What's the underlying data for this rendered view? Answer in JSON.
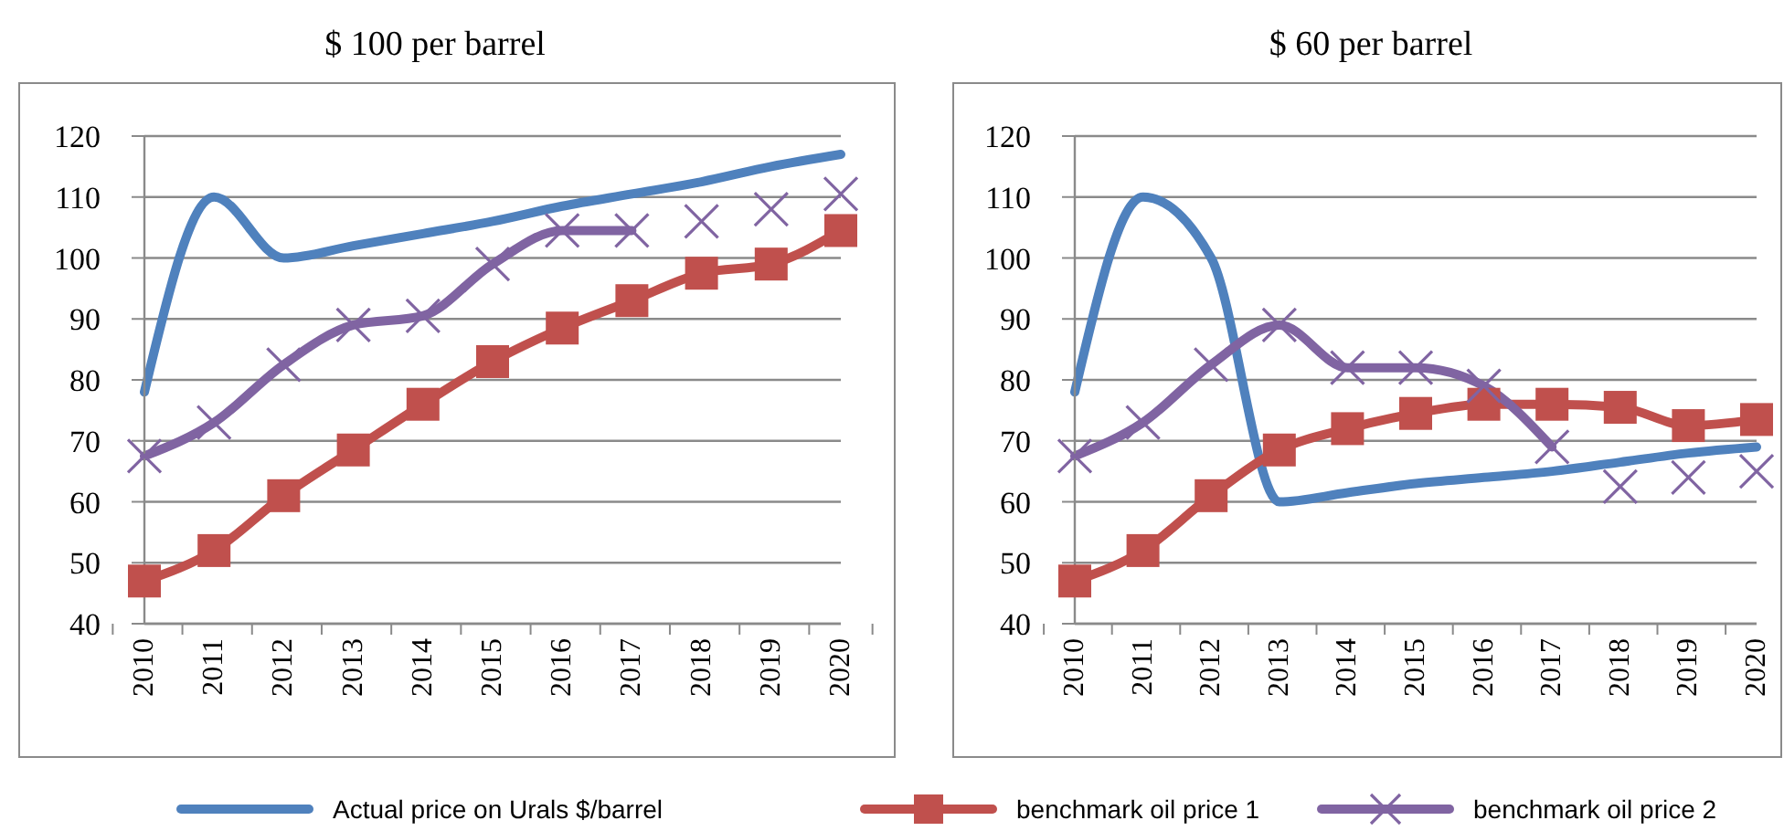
{
  "chart_data": [
    {
      "type": "line",
      "title": "$ 100 per barrel",
      "categories": [
        "2010",
        "2011",
        "2012",
        "2013",
        "2014",
        "2015",
        "2016",
        "2017",
        "2018",
        "2019",
        "2020"
      ],
      "ylim": [
        40,
        120
      ],
      "yticks": [
        40,
        50,
        60,
        70,
        80,
        90,
        100,
        110,
        120
      ],
      "grid": "y",
      "legend": "bottom",
      "series": [
        {
          "name": "Actual price on Urals $/barrel",
          "color": "#4f81bd",
          "marker": "none",
          "values": [
            78,
            110,
            100,
            102,
            104,
            106,
            108.5,
            110.5,
            112.5,
            115,
            117
          ]
        },
        {
          "name": "benchmark oil price 1",
          "color": "#c0504d",
          "marker": "square",
          "values": [
            47,
            52,
            61,
            68.5,
            76,
            83,
            88.5,
            93,
            97.5,
            99,
            104.5
          ]
        },
        {
          "name": "benchmark oil price 2",
          "color": "#8064a2",
          "marker": "cross",
          "values": [
            67.5,
            73,
            82.5,
            89,
            90.5,
            99,
            104.5,
            104.5,
            null,
            null,
            null
          ]
        },
        {
          "type": "scatter",
          "color": "#8064a2",
          "marker": "cross",
          "values": [
            null,
            null,
            null,
            null,
            null,
            null,
            null,
            null,
            106,
            108,
            110.5
          ]
        }
      ]
    },
    {
      "type": "line",
      "title": "$ 60 per barrel",
      "categories": [
        "2010",
        "2011",
        "2012",
        "2013",
        "2014",
        "2015",
        "2016",
        "2017",
        "2018",
        "2019",
        "2020"
      ],
      "ylim": [
        40,
        120
      ],
      "yticks": [
        40,
        50,
        60,
        70,
        80,
        90,
        100,
        110,
        120
      ],
      "grid": "y",
      "series": [
        {
          "color": "#4f81bd",
          "marker": "none",
          "values": [
            78,
            110,
            100,
            60,
            61.5,
            63,
            64,
            65,
            66.5,
            68,
            69
          ]
        },
        {
          "color": "#c0504d",
          "marker": "square",
          "values": [
            47,
            52,
            61,
            68.5,
            72,
            74.5,
            76,
            76,
            75.5,
            72.5,
            73.5
          ]
        },
        {
          "color": "#8064a2",
          "marker": "cross",
          "values": [
            67.5,
            73,
            82.5,
            89,
            82,
            82,
            79,
            69,
            null,
            null,
            null
          ]
        },
        {
          "type": "scatter",
          "color": "#8064a2",
          "marker": "cross",
          "values": [
            null,
            null,
            null,
            null,
            null,
            null,
            null,
            null,
            62.5,
            64,
            65
          ]
        }
      ]
    }
  ]
}
